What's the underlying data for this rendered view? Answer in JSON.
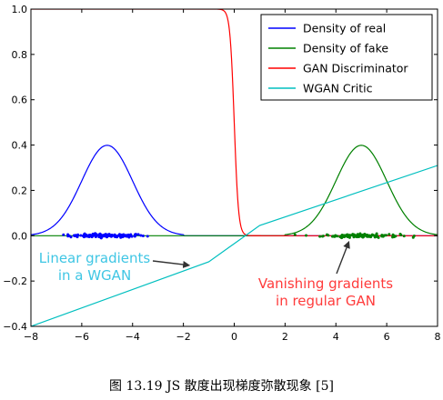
{
  "chart_data": {
    "type": "line",
    "title": "",
    "xlabel": "",
    "ylabel": "",
    "xlim": [
      -8,
      8
    ],
    "ylim": [
      -0.4,
      1.0
    ],
    "xticks": [
      -8,
      -6,
      -4,
      -2,
      0,
      2,
      4,
      6,
      8
    ],
    "yticks": [
      -0.4,
      -0.2,
      0.0,
      0.2,
      0.4,
      0.6,
      0.8,
      1.0
    ],
    "xtick_labels": [
      "−8",
      "−6",
      "−4",
      "−2",
      "0",
      "2",
      "4",
      "6",
      "8"
    ],
    "ytick_labels": [
      "−0.4",
      "−0.2",
      "0.0",
      "0.2",
      "0.4",
      "0.6",
      "0.8",
      "1.0"
    ],
    "grid": false,
    "legend_position": "top-right",
    "series": [
      {
        "name": "Density of real",
        "color": "#0000ff",
        "kind": "gaussian",
        "mean": -5,
        "std": 1,
        "xrange": [
          -8,
          -2
        ]
      },
      {
        "name": "Density of fake",
        "color": "#008000",
        "kind": "gaussian",
        "mean": 5,
        "std": 1,
        "xrange": [
          2,
          8
        ]
      },
      {
        "name": "GAN Discriminator",
        "color": "#ff0000",
        "kind": "sigmoid",
        "center": 0,
        "steepness": 12
      },
      {
        "name": "WGAN Critic",
        "color": "#00bfbf",
        "kind": "polyline",
        "x": [
          -8,
          -1,
          1,
          8
        ],
        "y": [
          -0.4,
          -0.115,
          0.045,
          0.31
        ]
      }
    ],
    "scatter_real": {
      "color": "#0000ff",
      "x_center": -5,
      "x_spread": 1,
      "count": 130
    },
    "scatter_fake": {
      "color": "#008000",
      "x_center": 5,
      "x_spread": 1,
      "count": 130
    },
    "annotations": [
      {
        "text_lines": [
          "Linear gradients",
          "in a WGAN"
        ],
        "color": "#3fc6e4",
        "arrow_to": [
          -1.8,
          -0.13
        ]
      },
      {
        "text_lines": [
          "Vanishing gradients",
          "in regular GAN"
        ],
        "color": "#ff3b3b",
        "arrow_to": [
          4.5,
          -0.03
        ]
      }
    ]
  },
  "caption": "图  13.19 JS 散度出现梯度弥散现象  [5]"
}
